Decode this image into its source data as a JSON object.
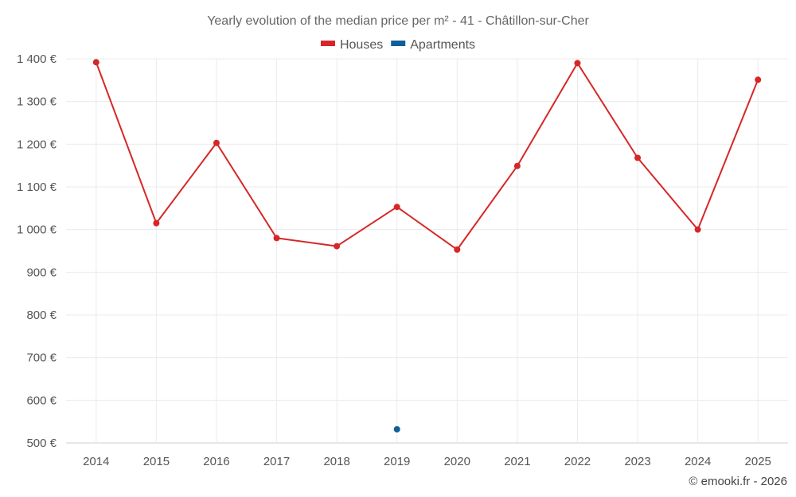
{
  "chart_data": {
    "type": "line",
    "title": "Yearly evolution of the median price per m² - 41 - Châtillon-sur-Cher",
    "categories": [
      "2014",
      "2015",
      "2016",
      "2017",
      "2018",
      "2019",
      "2020",
      "2021",
      "2022",
      "2023",
      "2024",
      "2025"
    ],
    "y_ticks": [
      500,
      600,
      700,
      800,
      900,
      1000,
      1100,
      1200,
      1300,
      1400
    ],
    "y_tick_labels": [
      "500 €",
      "600 €",
      "700 €",
      "800 €",
      "900 €",
      "1 000 €",
      "1 100 €",
      "1 200 €",
      "1 300 €",
      "1 400 €"
    ],
    "ylim": [
      500,
      1400
    ],
    "series": [
      {
        "name": "Houses",
        "color": "#d62728",
        "values": [
          1392,
          1015,
          1203,
          980,
          961,
          1053,
          953,
          1149,
          1390,
          1168,
          1000,
          1351
        ]
      },
      {
        "name": "Apartments",
        "color": "#0f5f9a",
        "values": [
          null,
          null,
          null,
          null,
          null,
          532,
          null,
          null,
          null,
          null,
          null,
          null
        ]
      }
    ],
    "legend_position": "top-center",
    "grid": true,
    "credit": "© emooki.fr - 2026"
  }
}
